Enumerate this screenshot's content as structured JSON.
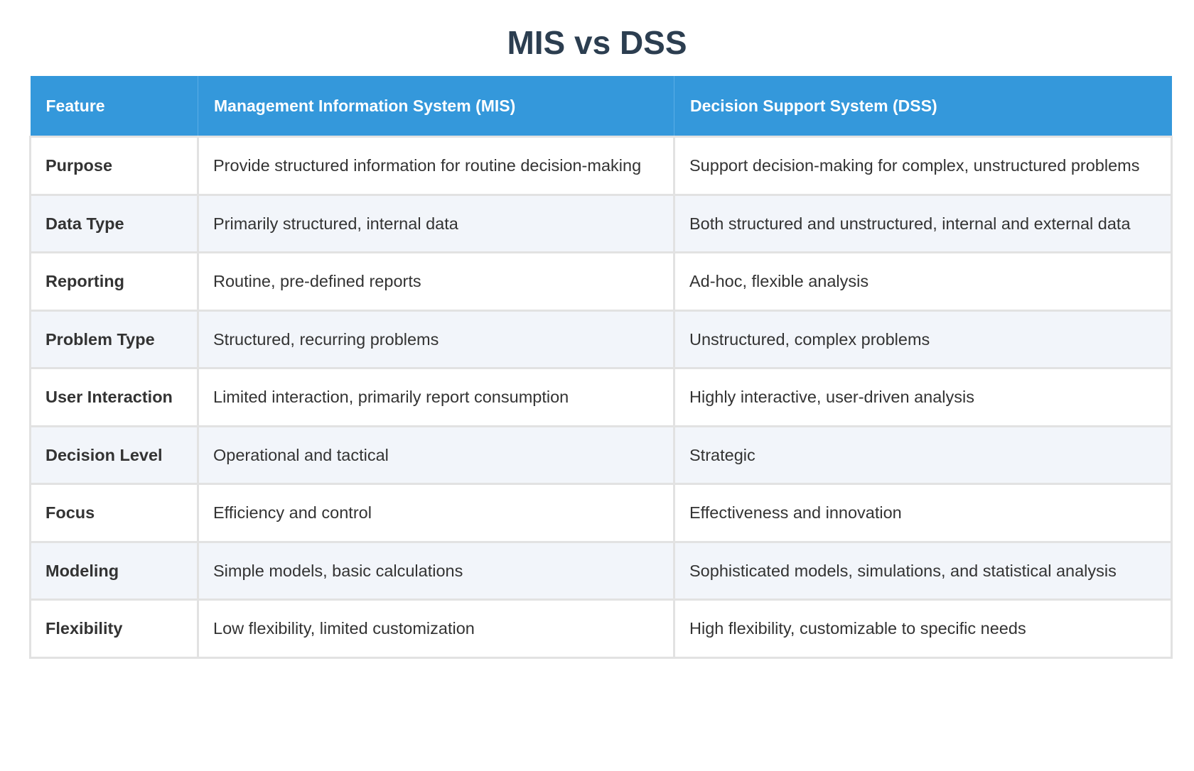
{
  "title": "MIS vs DSS",
  "colors": {
    "header_bg": "#3498db",
    "title": "#2c3e50",
    "alt_row": "#f2f5fa"
  },
  "table": {
    "headers": [
      "Feature",
      "Management Information System (MIS)",
      "Decision Support System (DSS)"
    ],
    "rows": [
      [
        "Purpose",
        "Provide structured information for routine decision-making",
        "Support decision-making for complex, unstructured problems"
      ],
      [
        "Data Type",
        "Primarily structured, internal data",
        "Both structured and unstructured, internal and external data"
      ],
      [
        "Reporting",
        "Routine, pre-defined reports",
        "Ad-hoc, flexible analysis"
      ],
      [
        "Problem Type",
        "Structured, recurring problems",
        "Unstructured, complex problems"
      ],
      [
        "User Interaction",
        "Limited interaction, primarily report consumption",
        "Highly interactive, user-driven analysis"
      ],
      [
        "Decision Level",
        "Operational and tactical",
        "Strategic"
      ],
      [
        "Focus",
        "Efficiency and control",
        "Effectiveness and innovation"
      ],
      [
        "Modeling",
        "Simple models, basic calculations",
        "Sophisticated models, simulations, and statistical analysis"
      ],
      [
        "Flexibility",
        "Low flexibility, limited customization",
        "High flexibility, customizable to specific needs"
      ]
    ]
  }
}
